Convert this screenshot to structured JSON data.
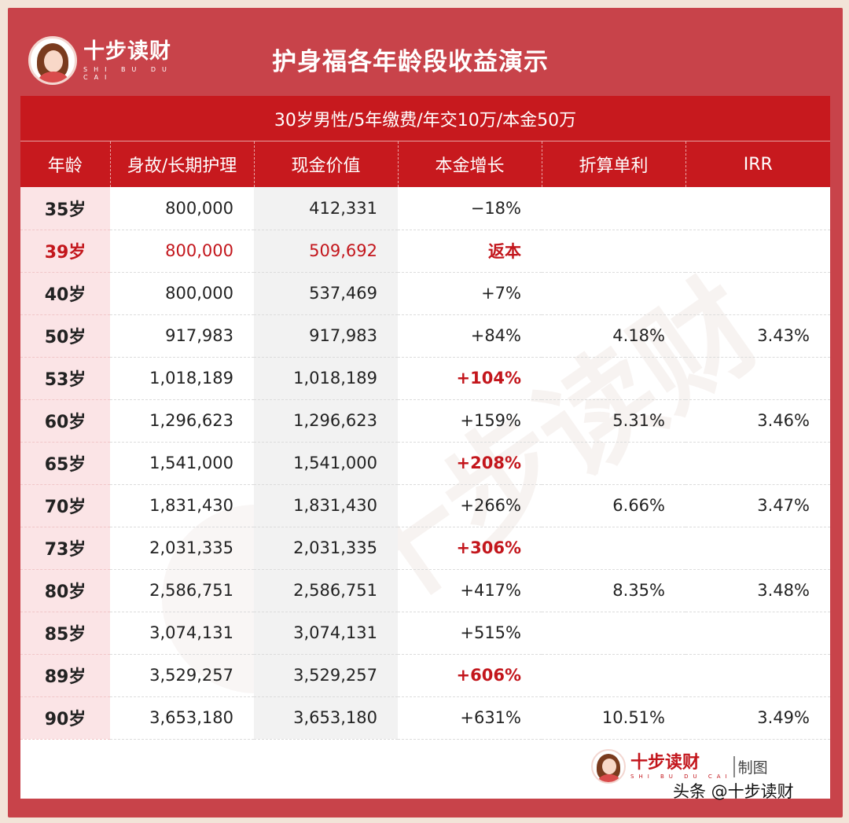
{
  "header": {
    "brand_cn": "十步读财",
    "brand_py": "SHI BU DU CAI",
    "title": "护身福各年龄段收益演示"
  },
  "subtitle": "30岁男性/5年缴费/年交10万/本金50万",
  "table": {
    "columns": [
      "年龄",
      "身故/长期护理",
      "现金价值",
      "本金增长",
      "折算单利",
      "IRR"
    ],
    "rows": [
      {
        "age": "35岁",
        "death": "800,000",
        "cash": "412,331",
        "growth": "−18%",
        "simple": "",
        "irr": "",
        "highlight": false,
        "growth_hi": false
      },
      {
        "age": "39岁",
        "death": "800,000",
        "cash": "509,692",
        "growth": "返本",
        "simple": "",
        "irr": "",
        "highlight": true,
        "growth_hi": true
      },
      {
        "age": "40岁",
        "death": "800,000",
        "cash": "537,469",
        "growth": "+7%",
        "simple": "",
        "irr": "",
        "highlight": false,
        "growth_hi": false
      },
      {
        "age": "50岁",
        "death": "917,983",
        "cash": "917,983",
        "growth": "+84%",
        "simple": "4.18%",
        "irr": "3.43%",
        "highlight": false,
        "growth_hi": false
      },
      {
        "age": "53岁",
        "death": "1,018,189",
        "cash": "1,018,189",
        "growth": "+104%",
        "simple": "",
        "irr": "",
        "highlight": false,
        "growth_hi": true
      },
      {
        "age": "60岁",
        "death": "1,296,623",
        "cash": "1,296,623",
        "growth": "+159%",
        "simple": "5.31%",
        "irr": "3.46%",
        "highlight": false,
        "growth_hi": false
      },
      {
        "age": "65岁",
        "death": "1,541,000",
        "cash": "1,541,000",
        "growth": "+208%",
        "simple": "",
        "irr": "",
        "highlight": false,
        "growth_hi": true
      },
      {
        "age": "70岁",
        "death": "1,831,430",
        "cash": "1,831,430",
        "growth": "+266%",
        "simple": "6.66%",
        "irr": "3.47%",
        "highlight": false,
        "growth_hi": false
      },
      {
        "age": "73岁",
        "death": "2,031,335",
        "cash": "2,031,335",
        "growth": "+306%",
        "simple": "",
        "irr": "",
        "highlight": false,
        "growth_hi": true
      },
      {
        "age": "80岁",
        "death": "2,586,751",
        "cash": "2,586,751",
        "growth": "+417%",
        "simple": "8.35%",
        "irr": "3.48%",
        "highlight": false,
        "growth_hi": false
      },
      {
        "age": "85岁",
        "death": "3,074,131",
        "cash": "3,074,131",
        "growth": "+515%",
        "simple": "",
        "irr": "",
        "highlight": false,
        "growth_hi": false
      },
      {
        "age": "89岁",
        "death": "3,529,257",
        "cash": "3,529,257",
        "growth": "+606%",
        "simple": "",
        "irr": "",
        "highlight": false,
        "growth_hi": true
      },
      {
        "age": "90岁",
        "death": "3,653,180",
        "cash": "3,653,180",
        "growth": "+631%",
        "simple": "10.51%",
        "irr": "3.49%",
        "highlight": false,
        "growth_hi": false
      }
    ]
  },
  "footer": {
    "brand_cn": "十步读财",
    "brand_py": "SHI BU DU CAI",
    "made_by": "制图",
    "source": "头条 @十步读财"
  },
  "colors": {
    "frame": "#c8434a",
    "header_red": "#c7191e",
    "highlight_text": "#c3161c",
    "age_column_bg": "#fbe4e6",
    "cash_column_bg": "#f2f2f2"
  }
}
